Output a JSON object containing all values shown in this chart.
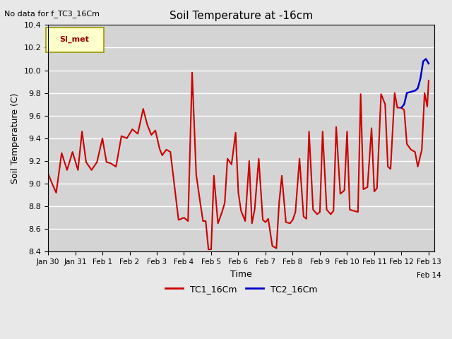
{
  "title": "Soil Temperature at -16cm",
  "xlabel": "Time",
  "ylabel": "Soil Temperature (C)",
  "note": "No data for f_TC3_16Cm",
  "legend_label": "SI_met",
  "ylim": [
    8.4,
    10.4
  ],
  "yticks": [
    8.4,
    8.6,
    8.8,
    9.0,
    9.2,
    9.4,
    9.6,
    9.8,
    10.0,
    10.2,
    10.4
  ],
  "background_color": "#e8e8e8",
  "plot_bg_color": "#d4d4d4",
  "grid_color": "#ffffff",
  "line1_color": "#cc0000",
  "line2_color": "#0000cc",
  "tc1_x": [
    0.0,
    0.15,
    0.3,
    0.5,
    0.7,
    0.9,
    1.1,
    1.25,
    1.4,
    1.6,
    1.8,
    2.0,
    2.15,
    2.3,
    2.5,
    2.7,
    2.9,
    3.1,
    3.3,
    3.5,
    3.65,
    3.8,
    3.95,
    4.1,
    4.2,
    4.35,
    4.5,
    4.65,
    4.8,
    5.0,
    5.15,
    5.3,
    5.45,
    5.6,
    5.7,
    5.8,
    5.9,
    6.0,
    6.1,
    6.25,
    6.4,
    6.5,
    6.6,
    6.75,
    6.9,
    7.0,
    7.1,
    7.25,
    7.4,
    7.5,
    7.6,
    7.75,
    7.9,
    8.0,
    8.1,
    8.25,
    8.4,
    8.5,
    8.6,
    8.75,
    8.9,
    9.0,
    9.1,
    9.25,
    9.4,
    9.5,
    9.6,
    9.75,
    9.9,
    10.0,
    10.1,
    10.25,
    10.4,
    10.5,
    10.6,
    10.75,
    10.9,
    11.0,
    11.1,
    11.25,
    11.4,
    11.5,
    11.6,
    11.75,
    11.9,
    12.0,
    12.1,
    12.25,
    12.4,
    12.5,
    12.6,
    12.75,
    12.85,
    13.0,
    13.1,
    13.2,
    13.35,
    13.5,
    13.6,
    13.75,
    13.85,
    13.95,
    14.0
  ],
  "tc1_y": [
    9.09,
    9.0,
    8.92,
    9.27,
    9.12,
    9.28,
    9.12,
    9.46,
    9.19,
    9.12,
    9.19,
    9.4,
    9.19,
    9.18,
    9.15,
    9.42,
    9.4,
    9.48,
    9.44,
    9.66,
    9.52,
    9.43,
    9.47,
    9.31,
    9.25,
    9.3,
    9.28,
    8.98,
    8.68,
    8.7,
    8.67,
    9.98,
    9.08,
    8.83,
    8.67,
    8.67,
    8.42,
    8.42,
    9.07,
    8.65,
    8.75,
    8.83,
    9.22,
    9.17,
    9.45,
    8.92,
    8.76,
    8.67,
    9.2,
    8.65,
    8.77,
    9.22,
    8.68,
    8.66,
    8.69,
    8.45,
    8.43,
    8.83,
    9.07,
    8.66,
    8.65,
    8.68,
    8.75,
    9.22,
    8.71,
    8.69,
    9.46,
    8.77,
    8.73,
    8.75,
    9.46,
    8.77,
    8.73,
    8.76,
    9.5,
    8.91,
    8.94,
    9.46,
    8.77,
    8.76,
    8.75,
    9.79,
    8.95,
    8.97,
    9.49,
    8.93,
    8.96,
    9.79,
    9.7,
    9.15,
    9.13,
    9.8,
    9.67,
    9.67,
    9.65,
    9.35,
    9.3,
    9.28,
    9.15,
    9.3,
    9.8,
    9.68,
    9.91
  ],
  "tc2_x": [
    13.0,
    13.1,
    13.2,
    13.35,
    13.5,
    13.6,
    13.7,
    13.8,
    13.9,
    14.0
  ],
  "tc2_y": [
    9.67,
    9.7,
    9.8,
    9.81,
    9.82,
    9.84,
    9.93,
    10.08,
    10.1,
    10.06
  ],
  "xtick_positions": [
    0,
    1,
    2,
    3,
    4,
    5,
    6,
    7,
    8,
    9,
    10,
    11,
    12,
    13,
    14
  ],
  "xtick_labels": [
    "Jan 30",
    "Jan 31",
    "Feb 1",
    "Feb 2",
    "Feb 3",
    "Feb 4",
    "Feb 5",
    "Feb 6",
    "Feb 7",
    "Feb 8",
    "Feb 9",
    "Feb 10",
    "Feb 11",
    "Feb 12",
    "Feb 13"
  ],
  "xlim": [
    0,
    14.2
  ],
  "figsize": [
    6.4,
    4.8
  ],
  "dpi": 100
}
